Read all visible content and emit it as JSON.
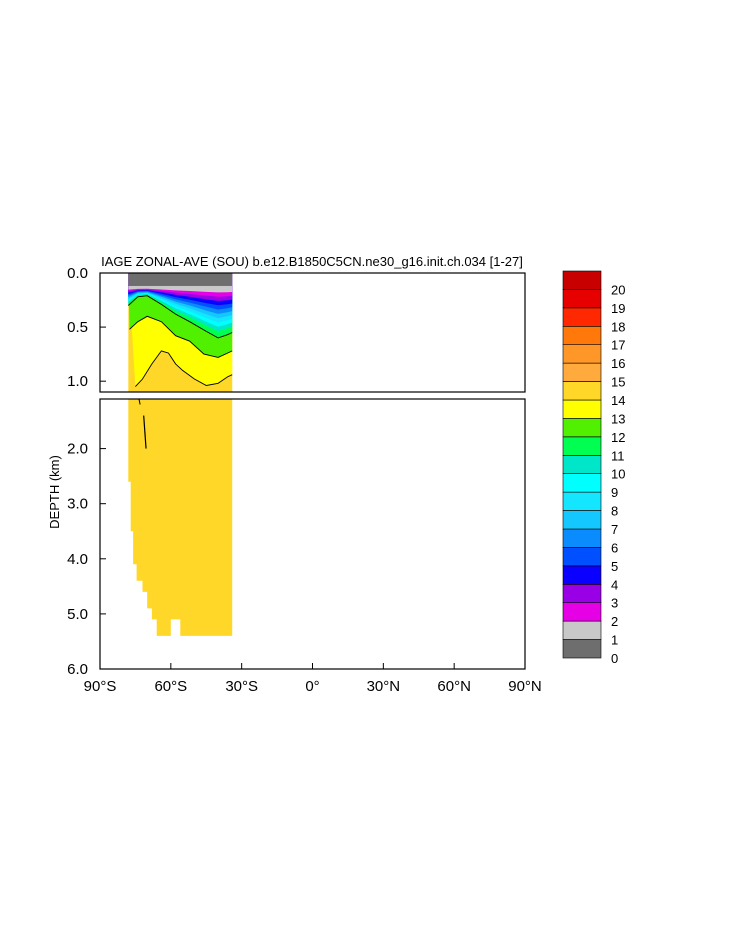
{
  "chart_data": {
    "type": "heatmap",
    "title": "IAGE ZONAL-AVE (SOU) b.e12.B1850C5CN.ne30_g16.init.ch.034 [1-27]",
    "ylabel": "DEPTH (km)",
    "xlabel": "",
    "x_range": [
      -90,
      90
    ],
    "y_range_top_panel": [
      0.0,
      1.1
    ],
    "y_range_bottom_panel": [
      1.1,
      6.0
    ],
    "x_ticks": [
      {
        "value": -90,
        "label": "90°S"
      },
      {
        "value": -60,
        "label": "60°S"
      },
      {
        "value": -30,
        "label": "30°S"
      },
      {
        "value": 0,
        "label": "0°"
      },
      {
        "value": 30,
        "label": "30°N"
      },
      {
        "value": 60,
        "label": "60°N"
      },
      {
        "value": 90,
        "label": "90°N"
      }
    ],
    "y_ticks_top": [
      {
        "value": 0.0,
        "label": "0.0"
      },
      {
        "value": 0.5,
        "label": "0.5"
      },
      {
        "value": 1.0,
        "label": "1.0"
      }
    ],
    "y_ticks_bottom": [
      {
        "value": 2.0,
        "label": "2.0"
      },
      {
        "value": 3.0,
        "label": "3.0"
      },
      {
        "value": 4.0,
        "label": "4.0"
      },
      {
        "value": 5.0,
        "label": "5.0"
      },
      {
        "value": 6.0,
        "label": "6.0"
      }
    ],
    "colorbar": {
      "levels": [
        "0",
        "1",
        "2",
        "3",
        "4",
        "5",
        "6",
        "7",
        "8",
        "9",
        "10",
        "11",
        "12",
        "13",
        "14",
        "15",
        "16",
        "17",
        "18",
        "19",
        "20"
      ],
      "colors": [
        "#6e6e6e",
        "#c8c8c8",
        "#e600e6",
        "#9a00e6",
        "#0a00ff",
        "#0050ff",
        "#0a8cff",
        "#14c8ff",
        "#14e6ff",
        "#00ffff",
        "#00e6c8",
        "#00ff50",
        "#50f000",
        "#ffff00",
        "#ffd728",
        "#ffaa3c",
        "#ff9628",
        "#ff780a",
        "#ff2800",
        "#e60000",
        "#c80000"
      ]
    },
    "bottom_panel_fill_value_range": [
      13,
      14
    ],
    "bottom_panel_x_extent": [
      -78,
      -34
    ],
    "bottom_panel_floor_steps": [
      {
        "lat": -77,
        "depth": 2.6
      },
      {
        "lat": -76,
        "depth": 3.5
      },
      {
        "lat": -74.5,
        "depth": 4.1
      },
      {
        "lat": -72,
        "depth": 4.4
      },
      {
        "lat": -70,
        "depth": 4.6
      },
      {
        "lat": -68,
        "depth": 4.9
      },
      {
        "lat": -66,
        "depth": 5.1
      },
      {
        "lat": -60,
        "depth": 5.4
      },
      {
        "lat": -56,
        "depth": 5.1
      },
      {
        "lat": -53,
        "depth": 5.4
      },
      {
        "lat": -34,
        "depth": 5.4
      }
    ],
    "top_panel_contours": [
      {
        "level": 12,
        "points": [
          [
            -78,
            0.3
          ],
          [
            -74,
            0.22
          ],
          [
            -70,
            0.21
          ],
          [
            -64,
            0.29
          ],
          [
            -58,
            0.38
          ],
          [
            -52,
            0.45
          ],
          [
            -45,
            0.54
          ],
          [
            -40,
            0.6
          ],
          [
            -36,
            0.57
          ],
          [
            -34,
            0.55
          ]
        ]
      },
      {
        "level": 13,
        "points": [
          [
            -77.5,
            0.52
          ],
          [
            -74,
            0.45
          ],
          [
            -70,
            0.4
          ],
          [
            -64,
            0.45
          ],
          [
            -58,
            0.58
          ],
          [
            -52,
            0.63
          ],
          [
            -46,
            0.75
          ],
          [
            -40,
            0.78
          ],
          [
            -36,
            0.74
          ],
          [
            -34,
            0.72
          ]
        ]
      },
      {
        "level": 14,
        "points": [
          [
            -75,
            1.05
          ],
          [
            -72,
            0.98
          ],
          [
            -68,
            0.84
          ],
          [
            -64,
            0.72
          ],
          [
            -61,
            0.74
          ],
          [
            -58,
            0.84
          ],
          [
            -55,
            0.9
          ],
          [
            -50,
            0.98
          ],
          [
            -45,
            1.04
          ],
          [
            -40,
            1.02
          ],
          [
            -36,
            0.96
          ],
          [
            -34,
            0.94
          ]
        ]
      }
    ]
  }
}
